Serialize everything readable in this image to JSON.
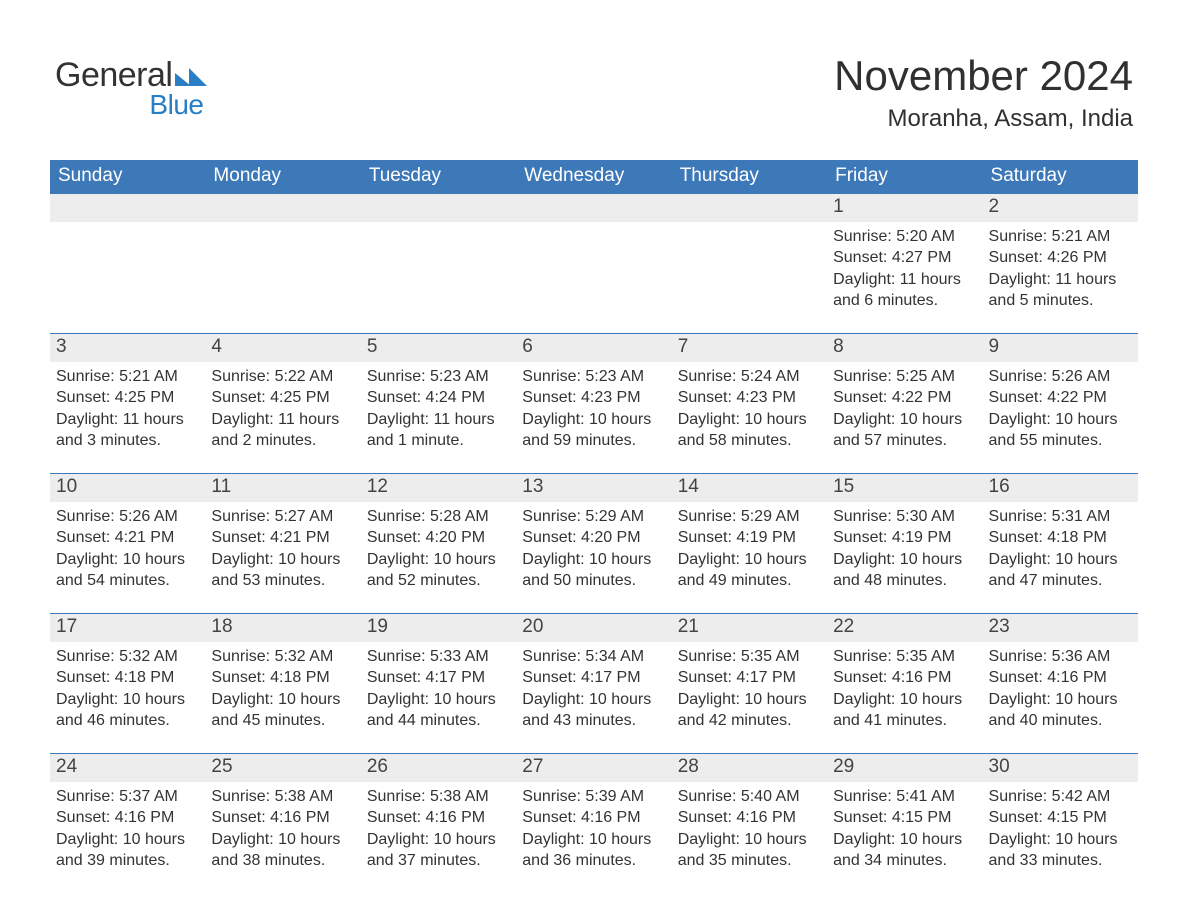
{
  "logo": {
    "line1": "General",
    "line2": "Blue",
    "line2_color": "#2a7ec5",
    "accent_color": "#2a7ec5"
  },
  "header": {
    "title": "November 2024",
    "location": "Moranha, Assam, India"
  },
  "calendar": {
    "header_bg": "#3d78b8",
    "header_text_color": "#ffffff",
    "daybar_bg": "#ededed",
    "daybar_border": "#3d78b8",
    "text_color": "#333333",
    "columns": [
      "Sunday",
      "Monday",
      "Tuesday",
      "Wednesday",
      "Thursday",
      "Friday",
      "Saturday"
    ],
    "weeks": [
      [
        {
          "day": "",
          "sunrise": "",
          "sunset": "",
          "daylight": ""
        },
        {
          "day": "",
          "sunrise": "",
          "sunset": "",
          "daylight": ""
        },
        {
          "day": "",
          "sunrise": "",
          "sunset": "",
          "daylight": ""
        },
        {
          "day": "",
          "sunrise": "",
          "sunset": "",
          "daylight": ""
        },
        {
          "day": "",
          "sunrise": "",
          "sunset": "",
          "daylight": ""
        },
        {
          "day": "1",
          "sunrise": "Sunrise: 5:20 AM",
          "sunset": "Sunset: 4:27 PM",
          "daylight": "Daylight: 11 hours and 6 minutes."
        },
        {
          "day": "2",
          "sunrise": "Sunrise: 5:21 AM",
          "sunset": "Sunset: 4:26 PM",
          "daylight": "Daylight: 11 hours and 5 minutes."
        }
      ],
      [
        {
          "day": "3",
          "sunrise": "Sunrise: 5:21 AM",
          "sunset": "Sunset: 4:25 PM",
          "daylight": "Daylight: 11 hours and 3 minutes."
        },
        {
          "day": "4",
          "sunrise": "Sunrise: 5:22 AM",
          "sunset": "Sunset: 4:25 PM",
          "daylight": "Daylight: 11 hours and 2 minutes."
        },
        {
          "day": "5",
          "sunrise": "Sunrise: 5:23 AM",
          "sunset": "Sunset: 4:24 PM",
          "daylight": "Daylight: 11 hours and 1 minute."
        },
        {
          "day": "6",
          "sunrise": "Sunrise: 5:23 AM",
          "sunset": "Sunset: 4:23 PM",
          "daylight": "Daylight: 10 hours and 59 minutes."
        },
        {
          "day": "7",
          "sunrise": "Sunrise: 5:24 AM",
          "sunset": "Sunset: 4:23 PM",
          "daylight": "Daylight: 10 hours and 58 minutes."
        },
        {
          "day": "8",
          "sunrise": "Sunrise: 5:25 AM",
          "sunset": "Sunset: 4:22 PM",
          "daylight": "Daylight: 10 hours and 57 minutes."
        },
        {
          "day": "9",
          "sunrise": "Sunrise: 5:26 AM",
          "sunset": "Sunset: 4:22 PM",
          "daylight": "Daylight: 10 hours and 55 minutes."
        }
      ],
      [
        {
          "day": "10",
          "sunrise": "Sunrise: 5:26 AM",
          "sunset": "Sunset: 4:21 PM",
          "daylight": "Daylight: 10 hours and 54 minutes."
        },
        {
          "day": "11",
          "sunrise": "Sunrise: 5:27 AM",
          "sunset": "Sunset: 4:21 PM",
          "daylight": "Daylight: 10 hours and 53 minutes."
        },
        {
          "day": "12",
          "sunrise": "Sunrise: 5:28 AM",
          "sunset": "Sunset: 4:20 PM",
          "daylight": "Daylight: 10 hours and 52 minutes."
        },
        {
          "day": "13",
          "sunrise": "Sunrise: 5:29 AM",
          "sunset": "Sunset: 4:20 PM",
          "daylight": "Daylight: 10 hours and 50 minutes."
        },
        {
          "day": "14",
          "sunrise": "Sunrise: 5:29 AM",
          "sunset": "Sunset: 4:19 PM",
          "daylight": "Daylight: 10 hours and 49 minutes."
        },
        {
          "day": "15",
          "sunrise": "Sunrise: 5:30 AM",
          "sunset": "Sunset: 4:19 PM",
          "daylight": "Daylight: 10 hours and 48 minutes."
        },
        {
          "day": "16",
          "sunrise": "Sunrise: 5:31 AM",
          "sunset": "Sunset: 4:18 PM",
          "daylight": "Daylight: 10 hours and 47 minutes."
        }
      ],
      [
        {
          "day": "17",
          "sunrise": "Sunrise: 5:32 AM",
          "sunset": "Sunset: 4:18 PM",
          "daylight": "Daylight: 10 hours and 46 minutes."
        },
        {
          "day": "18",
          "sunrise": "Sunrise: 5:32 AM",
          "sunset": "Sunset: 4:18 PM",
          "daylight": "Daylight: 10 hours and 45 minutes."
        },
        {
          "day": "19",
          "sunrise": "Sunrise: 5:33 AM",
          "sunset": "Sunset: 4:17 PM",
          "daylight": "Daylight: 10 hours and 44 minutes."
        },
        {
          "day": "20",
          "sunrise": "Sunrise: 5:34 AM",
          "sunset": "Sunset: 4:17 PM",
          "daylight": "Daylight: 10 hours and 43 minutes."
        },
        {
          "day": "21",
          "sunrise": "Sunrise: 5:35 AM",
          "sunset": "Sunset: 4:17 PM",
          "daylight": "Daylight: 10 hours and 42 minutes."
        },
        {
          "day": "22",
          "sunrise": "Sunrise: 5:35 AM",
          "sunset": "Sunset: 4:16 PM",
          "daylight": "Daylight: 10 hours and 41 minutes."
        },
        {
          "day": "23",
          "sunrise": "Sunrise: 5:36 AM",
          "sunset": "Sunset: 4:16 PM",
          "daylight": "Daylight: 10 hours and 40 minutes."
        }
      ],
      [
        {
          "day": "24",
          "sunrise": "Sunrise: 5:37 AM",
          "sunset": "Sunset: 4:16 PM",
          "daylight": "Daylight: 10 hours and 39 minutes."
        },
        {
          "day": "25",
          "sunrise": "Sunrise: 5:38 AM",
          "sunset": "Sunset: 4:16 PM",
          "daylight": "Daylight: 10 hours and 38 minutes."
        },
        {
          "day": "26",
          "sunrise": "Sunrise: 5:38 AM",
          "sunset": "Sunset: 4:16 PM",
          "daylight": "Daylight: 10 hours and 37 minutes."
        },
        {
          "day": "27",
          "sunrise": "Sunrise: 5:39 AM",
          "sunset": "Sunset: 4:16 PM",
          "daylight": "Daylight: 10 hours and 36 minutes."
        },
        {
          "day": "28",
          "sunrise": "Sunrise: 5:40 AM",
          "sunset": "Sunset: 4:16 PM",
          "daylight": "Daylight: 10 hours and 35 minutes."
        },
        {
          "day": "29",
          "sunrise": "Sunrise: 5:41 AM",
          "sunset": "Sunset: 4:15 PM",
          "daylight": "Daylight: 10 hours and 34 minutes."
        },
        {
          "day": "30",
          "sunrise": "Sunrise: 5:42 AM",
          "sunset": "Sunset: 4:15 PM",
          "daylight": "Daylight: 10 hours and 33 minutes."
        }
      ]
    ]
  }
}
